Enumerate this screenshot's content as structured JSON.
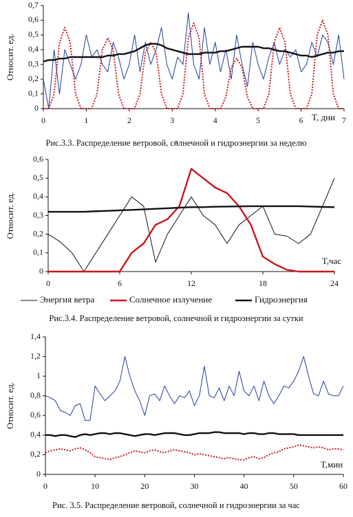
{
  "chart_data": [
    {
      "type": "line",
      "caption": "Рис.3.3. Распределение ветровой, солнечной и гидроэнергии за неделю",
      "xlabel": "T, дни",
      "ylabel": "Относит. ед.",
      "xlim": [
        0,
        7
      ],
      "xticks": [
        0,
        1,
        2,
        3,
        4,
        5,
        6,
        7
      ],
      "ylim": [
        0,
        0.7
      ],
      "yticks": [
        0,
        {
          "value": 0.1,
          "label": "0,1"
        },
        {
          "value": 0.2,
          "label": "0,2"
        },
        {
          "value": 0.3,
          "label": "0,3"
        },
        {
          "value": 0.4,
          "label": "0,4"
        },
        {
          "value": 0.5,
          "label": "0,5"
        },
        {
          "value": 0.6,
          "label": "0,6"
        },
        {
          "value": 0.7,
          "label": "0,7"
        }
      ],
      "x": [
        0,
        0.125,
        0.25,
        0.375,
        0.5,
        0.625,
        0.75,
        0.875,
        1,
        1.125,
        1.25,
        1.375,
        1.5,
        1.625,
        1.75,
        1.875,
        2,
        2.125,
        2.25,
        2.375,
        2.5,
        2.625,
        2.75,
        2.875,
        3,
        3.125,
        3.25,
        3.375,
        3.5,
        3.625,
        3.75,
        3.875,
        4,
        4.125,
        4.25,
        4.375,
        4.5,
        4.625,
        4.75,
        4.875,
        5,
        5.125,
        5.25,
        5.375,
        5.5,
        5.625,
        5.75,
        5.875,
        6,
        6.125,
        6.25,
        6.375,
        6.5,
        6.625,
        6.75,
        6.875,
        7
      ],
      "series": [
        {
          "color": "#1f3c9a",
          "weight": "thin",
          "style": "solid",
          "values": [
            0.2,
            0,
            0.4,
            0.1,
            0.4,
            0.3,
            0.2,
            0.3,
            0.5,
            0.35,
            0.4,
            0.3,
            0.25,
            0.45,
            0.35,
            0.2,
            0.3,
            0.5,
            0.25,
            0.45,
            0.3,
            0.4,
            0.55,
            0.3,
            0.2,
            0.35,
            0.3,
            0.65,
            0.3,
            0.2,
            0.55,
            0.3,
            0.45,
            0.25,
            0.4,
            0.2,
            0.5,
            0.3,
            0.15,
            0.45,
            0.3,
            0.2,
            0.35,
            0.45,
            0.3,
            0.4,
            0.35,
            0.4,
            0.25,
            0.3,
            0.45,
            0.35,
            0.5,
            0.45,
            0.3,
            0.5,
            0.2
          ]
        },
        {
          "color": "#c8161d",
          "weight": "medium",
          "style": "dotted",
          "values": [
            0,
            0,
            0.1,
            0.45,
            0.55,
            0.45,
            0.1,
            0,
            0,
            0,
            0.1,
            0.4,
            0.48,
            0.4,
            0.1,
            0,
            0,
            0,
            0.1,
            0.38,
            0.45,
            0.38,
            0.1,
            0,
            0,
            0,
            0.1,
            0.48,
            0.58,
            0.48,
            0.1,
            0,
            0,
            0,
            0.08,
            0.28,
            0.34,
            0.28,
            0.08,
            0,
            0,
            0,
            0.1,
            0.45,
            0.55,
            0.45,
            0.1,
            0,
            0,
            0,
            0.1,
            0.5,
            0.6,
            0.5,
            0.1,
            0,
            0
          ]
        },
        {
          "color": "#111111",
          "weight": "thick",
          "style": "solid",
          "values": [
            0.32,
            0.33,
            0.33,
            0.34,
            0.34,
            0.35,
            0.35,
            0.35,
            0.35,
            0.35,
            0.35,
            0.35,
            0.36,
            0.36,
            0.37,
            0.37,
            0.38,
            0.39,
            0.41,
            0.43,
            0.44,
            0.44,
            0.43,
            0.41,
            0.4,
            0.39,
            0.38,
            0.37,
            0.37,
            0.37,
            0.38,
            0.38,
            0.38,
            0.39,
            0.39,
            0.4,
            0.41,
            0.42,
            0.42,
            0.42,
            0.42,
            0.41,
            0.41,
            0.4,
            0.39,
            0.39,
            0.38,
            0.37,
            0.36,
            0.36,
            0.35,
            0.36,
            0.37,
            0.38,
            0.38,
            0.39,
            0.39
          ]
        }
      ]
    },
    {
      "type": "line",
      "caption": "Рис.3.4. Распределение ветровой, солнечной и гидроэнергии за сутки",
      "xlabel": "T,час",
      "ylabel": "Относит. ед.",
      "annotation": "a",
      "legend": "bottom",
      "xlim": [
        0,
        24
      ],
      "xticks": [
        0,
        6,
        12,
        18,
        24
      ],
      "ylim": [
        0,
        0.6
      ],
      "yticks": [
        0,
        {
          "value": 0.1,
          "label": "0,1"
        },
        {
          "value": 0.2,
          "label": "0,2"
        },
        {
          "value": 0.3,
          "label": "0,3"
        },
        {
          "value": 0.4,
          "label": "0,4"
        },
        {
          "value": 0.5,
          "label": "0,5"
        },
        {
          "value": 0.6,
          "label": "0,6"
        }
      ],
      "x": [
        0,
        1,
        2,
        3,
        4,
        5,
        6,
        7,
        8,
        9,
        10,
        11,
        12,
        13,
        14,
        15,
        16,
        17,
        18,
        19,
        20,
        21,
        22,
        23,
        24
      ],
      "series": [
        {
          "name": "Энергия ветра",
          "color": "#111111",
          "weight": "thin",
          "style": "solid",
          "values": [
            0.2,
            0.16,
            0.1,
            0,
            0.1,
            0.2,
            0.3,
            0.4,
            0.35,
            0.05,
            0.2,
            0.3,
            0.4,
            0.3,
            0.25,
            0.15,
            0.25,
            0.3,
            0.35,
            0.2,
            0.19,
            0.15,
            0.2,
            0.35,
            0.5
          ]
        },
        {
          "name": "Солнечное излучение",
          "color": "#c8161d",
          "weight": "thick",
          "style": "solid",
          "values": [
            0,
            0,
            0,
            0,
            0,
            0,
            0,
            0.1,
            0.15,
            0.25,
            0.28,
            0.35,
            0.55,
            0.5,
            0.45,
            0.42,
            0.35,
            0.25,
            0.08,
            0.04,
            0.01,
            0,
            0,
            0,
            0
          ]
        },
        {
          "name": "Гидроэнергия",
          "color": "#111111",
          "weight": "thick",
          "style": "solid",
          "values": [
            0.32,
            0.32,
            0.32,
            0.32,
            0.323,
            0.325,
            0.328,
            0.33,
            0.333,
            0.336,
            0.339,
            0.342,
            0.345,
            0.345,
            0.347,
            0.348,
            0.349,
            0.35,
            0.35,
            0.35,
            0.35,
            0.35,
            0.348,
            0.346,
            0.345
          ]
        }
      ]
    },
    {
      "type": "line",
      "caption": "Рис. 3.5. Распределение ветровой, солнечной и гидроэнергии за час",
      "xlabel": "T,мин",
      "ylabel": "Относит. ед.",
      "xlim": [
        0,
        60
      ],
      "xticks": [
        0,
        10,
        20,
        30,
        40,
        50,
        60
      ],
      "ylim": [
        0,
        1.4
      ],
      "yticks": [
        0,
        {
          "value": 0.2,
          "label": "0,2"
        },
        {
          "value": 0.4,
          "label": "0,4"
        },
        {
          "value": 0.6,
          "label": "0,6"
        },
        {
          "value": 0.8,
          "label": "0,8"
        },
        1,
        {
          "value": 1.2,
          "label": "1,2"
        },
        {
          "value": 1.4,
          "label": "1,4"
        }
      ],
      "x": [
        0,
        1,
        2,
        3,
        4,
        5,
        6,
        7,
        8,
        9,
        10,
        11,
        12,
        13,
        14,
        15,
        16,
        17,
        18,
        19,
        20,
        21,
        22,
        23,
        24,
        25,
        26,
        27,
        28,
        29,
        30,
        31,
        32,
        33,
        34,
        35,
        36,
        37,
        38,
        39,
        40,
        41,
        42,
        43,
        44,
        45,
        46,
        47,
        48,
        49,
        50,
        51,
        52,
        53,
        54,
        55,
        56,
        57,
        58,
        59,
        60
      ],
      "series": [
        {
          "color": "#1f3c9a",
          "weight": "thin",
          "style": "solid",
          "values": [
            0.8,
            0.78,
            0.75,
            0.65,
            0.63,
            0.6,
            0.7,
            0.72,
            0.55,
            0.55,
            0.9,
            0.82,
            0.75,
            0.8,
            0.85,
            0.95,
            1.2,
            1,
            0.85,
            0.75,
            0.6,
            0.8,
            0.82,
            0.75,
            0.9,
            0.8,
            0.72,
            0.8,
            0.78,
            0.85,
            0.7,
            0.8,
            1.1,
            0.8,
            0.78,
            0.88,
            0.75,
            0.9,
            0.8,
            1.05,
            0.85,
            0.8,
            0.9,
            0.75,
            0.95,
            0.8,
            0.72,
            0.8,
            0.9,
            0.88,
            0.95,
            1.05,
            1.2,
            1,
            0.82,
            0.8,
            0.95,
            0.82,
            0.8,
            0.8,
            0.9
          ]
        },
        {
          "color": "#c8161d",
          "weight": "medium",
          "style": "dotted",
          "values": [
            0.22,
            0.24,
            0.25,
            0.26,
            0.25,
            0.24,
            0.26,
            0.27,
            0.25,
            0.22,
            0.18,
            0.17,
            0.16,
            0.15,
            0.17,
            0.18,
            0.2,
            0.22,
            0.24,
            0.23,
            0.22,
            0.24,
            0.25,
            0.23,
            0.22,
            0.24,
            0.25,
            0.24,
            0.23,
            0.22,
            0.2,
            0.21,
            0.2,
            0.19,
            0.18,
            0.17,
            0.16,
            0.17,
            0.16,
            0.15,
            0.15,
            0.17,
            0.18,
            0.16,
            0.17,
            0.2,
            0.22,
            0.23,
            0.26,
            0.27,
            0.28,
            0.3,
            0.29,
            0.28,
            0.27,
            0.28,
            0.27,
            0.25,
            0.26,
            0.26,
            0.25
          ]
        },
        {
          "color": "#111111",
          "weight": "thick",
          "style": "solid",
          "values": [
            0.4,
            0.4,
            0.39,
            0.4,
            0.4,
            0.39,
            0.38,
            0.4,
            0.41,
            0.4,
            0.41,
            0.42,
            0.42,
            0.41,
            0.42,
            0.42,
            0.41,
            0.4,
            0.39,
            0.4,
            0.41,
            0.41,
            0.4,
            0.41,
            0.42,
            0.42,
            0.42,
            0.41,
            0.4,
            0.4,
            0.41,
            0.42,
            0.42,
            0.42,
            0.43,
            0.43,
            0.42,
            0.42,
            0.42,
            0.42,
            0.41,
            0.42,
            0.42,
            0.41,
            0.41,
            0.42,
            0.42,
            0.41,
            0.41,
            0.41,
            0.41,
            0.4,
            0.4,
            0.4,
            0.4,
            0.4,
            0.4,
            0.4,
            0.4,
            0.4,
            0.4
          ]
        }
      ]
    }
  ]
}
